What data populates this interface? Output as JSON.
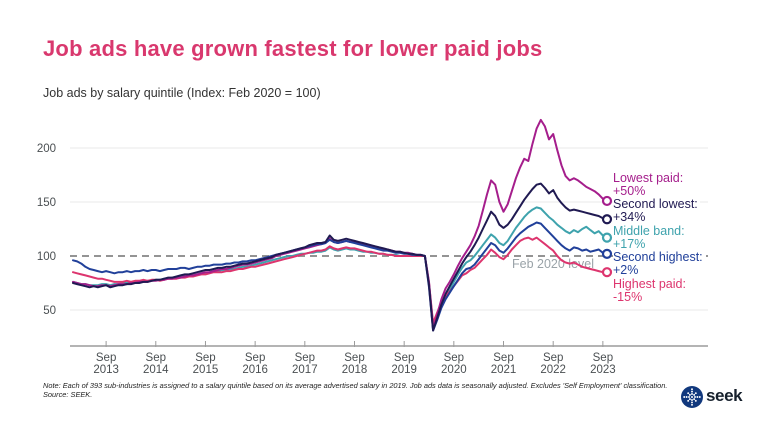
{
  "header": {
    "title": "Job ads have grown fastest for lower paid jobs",
    "subtitle": "Job ads by salary quintile (Index: Feb 2020 = 100)"
  },
  "colors": {
    "title": "#d9386e",
    "axis": "#9b9b9b",
    "gridline": "#e9e9e9",
    "reference_line": "#949494",
    "tick_text": "#4a4f52",
    "annotation_text": "#9aa3a8",
    "logo_navy": "#11387d"
  },
  "annotation": {
    "reference_label": "Feb 2020 level"
  },
  "legend": [
    {
      "label": "Lowest paid:",
      "value": "+50%",
      "color": "#a51e8c"
    },
    {
      "label": "Second lowest:",
      "value": "+34%",
      "color": "#201a52"
    },
    {
      "label": "Middle band:",
      "value": "+17%",
      "color": "#3fa3ad"
    },
    {
      "label": "Second highest:",
      "value": "+2%",
      "color": "#21409a"
    },
    {
      "label": "Highest paid:",
      "value": "-15%",
      "color": "#dd356e"
    }
  ],
  "footer": {
    "note": "Note: Each of 393 sub-industries is assigned to a salary quintile based on its average advertised salary in 2019. Job ads data is seasonally adjusted. Excludes 'Self Employment' classification.",
    "source": "Source: SEEK.",
    "logo_text": "seek"
  },
  "chart_data": {
    "type": "line",
    "title": "Job ads by salary quintile",
    "index_base": "Feb 2020 = 100",
    "x_start": "2013-01",
    "x_end": "2023-10",
    "x_frequency": "monthly",
    "x_tick_labels": [
      "Sep 2013",
      "Sep 2014",
      "Sep 2015",
      "Sep 2016",
      "Sep 2017",
      "Sep 2018",
      "Sep 2019",
      "Sep 2020",
      "Sep 2021",
      "Sep 2022",
      "Sep 2023"
    ],
    "y_ticks": [
      50,
      100,
      150,
      200
    ],
    "y_range": [
      25,
      235
    ],
    "grid": "horizontal",
    "legend_position": "right",
    "reference_line": {
      "value": 100,
      "label": "Feb 2020 level",
      "style": "dashed"
    },
    "series": [
      {
        "name": "Lowest paid",
        "end_change": "+50%",
        "color": "#a51e8c",
        "values": [
          76,
          75,
          74,
          74,
          73,
          72,
          72,
          73,
          73,
          72,
          73,
          74,
          74,
          74,
          75,
          75,
          76,
          76,
          76,
          77,
          77,
          78,
          78,
          79,
          79,
          80,
          80,
          81,
          82,
          82,
          83,
          84,
          85,
          85,
          86,
          87,
          88,
          88,
          89,
          90,
          91,
          92,
          92,
          93,
          94,
          95,
          96,
          97,
          98,
          100,
          101,
          102,
          103,
          104,
          105,
          106,
          107,
          108,
          109,
          110,
          111,
          112,
          116,
          113,
          112,
          113,
          114,
          113,
          113,
          112,
          111,
          110,
          109,
          108,
          107,
          106,
          106,
          105,
          104,
          104,
          103,
          103,
          102,
          101,
          101,
          100,
          76,
          32,
          46,
          60,
          70,
          76,
          83,
          91,
          98,
          104,
          110,
          118,
          128,
          142,
          157,
          170,
          166,
          150,
          141,
          148,
          160,
          172,
          182,
          190,
          188,
          204,
          218,
          226,
          220,
          208,
          213,
          198,
          184,
          174,
          170,
          172,
          170,
          167,
          164,
          162,
          160,
          157,
          153,
          151
        ]
      },
      {
        "name": "Second lowest",
        "end_change": "+34%",
        "color": "#201a52",
        "values": [
          75,
          74,
          73,
          72,
          71,
          72,
          71,
          72,
          73,
          71,
          72,
          73,
          73,
          74,
          74,
          75,
          75,
          76,
          76,
          77,
          78,
          78,
          79,
          80,
          80,
          81,
          82,
          83,
          83,
          84,
          85,
          86,
          87,
          87,
          88,
          89,
          89,
          90,
          90,
          91,
          92,
          93,
          93,
          94,
          95,
          96,
          97,
          98,
          99,
          101,
          102,
          103,
          104,
          105,
          106,
          107,
          108,
          110,
          111,
          112,
          112,
          113,
          119,
          115,
          114,
          115,
          116,
          115,
          114,
          113,
          112,
          111,
          110,
          109,
          108,
          107,
          106,
          105,
          104,
          104,
          103,
          102,
          102,
          101,
          101,
          100,
          73,
          31,
          43,
          55,
          65,
          72,
          79,
          86,
          93,
          99,
          104,
          110,
          117,
          125,
          133,
          141,
          137,
          129,
          126,
          129,
          134,
          140,
          146,
          152,
          157,
          162,
          166,
          167,
          163,
          158,
          161,
          154,
          149,
          145,
          142,
          143,
          142,
          141,
          140,
          139,
          138,
          137,
          135,
          134
        ]
      },
      {
        "name": "Middle band",
        "end_change": "+17%",
        "color": "#3fa3ad",
        "values": [
          76,
          75,
          74,
          74,
          73,
          73,
          73,
          74,
          74,
          73,
          74,
          74,
          75,
          75,
          75,
          76,
          76,
          76,
          77,
          77,
          78,
          78,
          79,
          79,
          80,
          80,
          81,
          81,
          82,
          82,
          83,
          84,
          84,
          85,
          86,
          86,
          87,
          87,
          88,
          88,
          89,
          90,
          90,
          91,
          92,
          93,
          94,
          95,
          96,
          97,
          98,
          99,
          100,
          100,
          101,
          102,
          102,
          103,
          103,
          104,
          104,
          105,
          108,
          106,
          105,
          106,
          107,
          106,
          106,
          105,
          104,
          104,
          103,
          103,
          102,
          102,
          101,
          101,
          101,
          100,
          100,
          100,
          100,
          100,
          100,
          100,
          74,
          36,
          46,
          56,
          64,
          69,
          76,
          83,
          89,
          94,
          96,
          100,
          105,
          110,
          115,
          120,
          117,
          112,
          110,
          114,
          120,
          126,
          131,
          136,
          140,
          143,
          145,
          144,
          140,
          136,
          133,
          129,
          126,
          123,
          121,
          124,
          122,
          125,
          127,
          124,
          121,
          123,
          119,
          117
        ]
      },
      {
        "name": "Second highest",
        "end_change": "+2%",
        "color": "#21409a",
        "values": [
          96,
          95,
          93,
          90,
          88,
          87,
          86,
          85,
          86,
          85,
          84,
          85,
          85,
          86,
          85,
          86,
          86,
          87,
          86,
          87,
          87,
          86,
          87,
          88,
          88,
          88,
          89,
          89,
          88,
          89,
          90,
          90,
          91,
          91,
          92,
          92,
          92,
          93,
          93,
          94,
          94,
          95,
          95,
          96,
          96,
          97,
          98,
          99,
          100,
          101,
          102,
          103,
          104,
          105,
          106,
          107,
          108,
          109,
          110,
          111,
          111,
          112,
          115,
          113,
          112,
          113,
          114,
          113,
          112,
          111,
          110,
          109,
          108,
          107,
          106,
          105,
          105,
          104,
          103,
          103,
          102,
          102,
          101,
          101,
          101,
          100,
          71,
          31,
          41,
          52,
          60,
          66,
          72,
          78,
          84,
          88,
          89,
          92,
          97,
          102,
          107,
          112,
          110,
          105,
          103,
          107,
          112,
          117,
          121,
          124,
          127,
          129,
          131,
          130,
          126,
          122,
          118,
          114,
          110,
          107,
          105,
          108,
          107,
          105,
          106,
          104,
          105,
          106,
          103,
          102
        ]
      },
      {
        "name": "Highest paid",
        "end_change": "-15%",
        "color": "#dd356e",
        "values": [
          85,
          84,
          83,
          82,
          81,
          80,
          79,
          79,
          78,
          77,
          76,
          76,
          76,
          77,
          76,
          77,
          77,
          78,
          77,
          78,
          78,
          77,
          78,
          79,
          79,
          79,
          80,
          80,
          81,
          81,
          82,
          83,
          83,
          84,
          85,
          85,
          85,
          86,
          86,
          87,
          88,
          88,
          89,
          90,
          90,
          91,
          92,
          93,
          94,
          95,
          96,
          97,
          98,
          99,
          100,
          101,
          102,
          103,
          104,
          105,
          105,
          106,
          109,
          107,
          106,
          107,
          108,
          107,
          107,
          106,
          105,
          104,
          104,
          103,
          102,
          102,
          101,
          101,
          100,
          100,
          100,
          100,
          100,
          100,
          100,
          100,
          75,
          38,
          48,
          57,
          63,
          67,
          72,
          77,
          82,
          84,
          87,
          89,
          93,
          97,
          101,
          106,
          103,
          99,
          97,
          101,
          106,
          110,
          114,
          116,
          117,
          115,
          117,
          114,
          111,
          108,
          105,
          100,
          96,
          94,
          93,
          94,
          92,
          90,
          89,
          88,
          87,
          86,
          85,
          85
        ]
      }
    ]
  }
}
